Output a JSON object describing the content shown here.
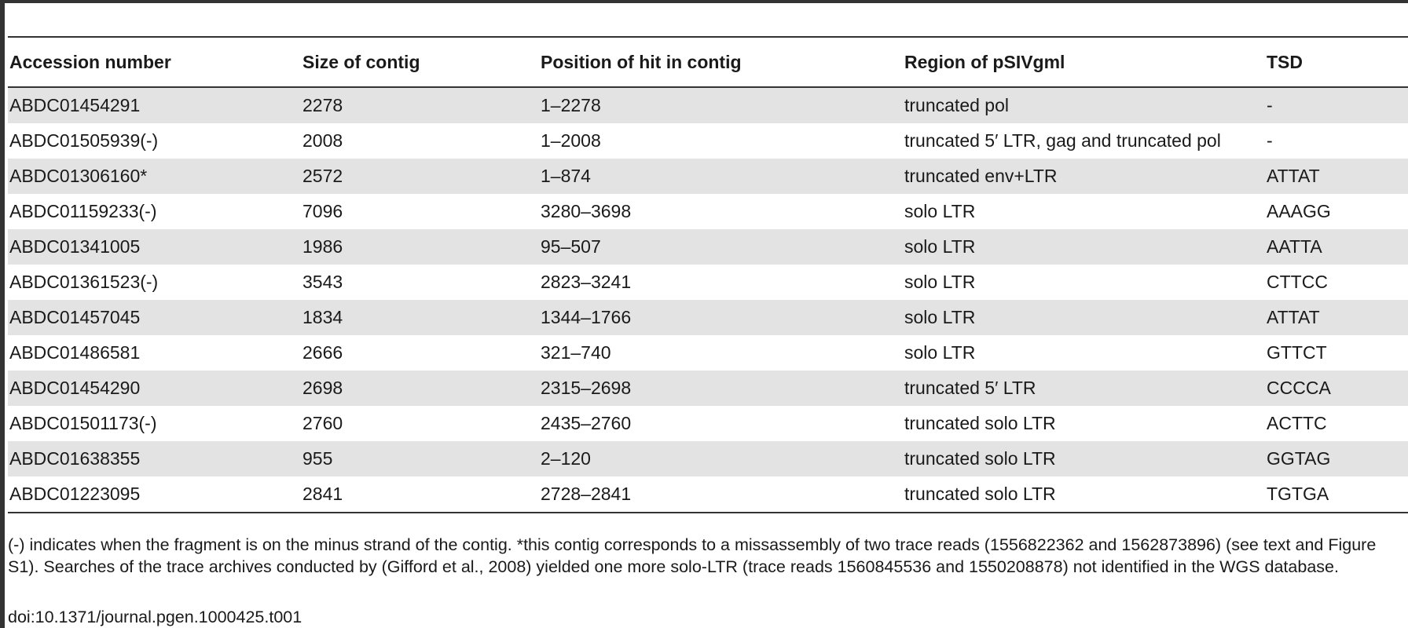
{
  "table": {
    "headers": [
      "Accession number",
      "Size of contig",
      "Position of hit in contig",
      "Region of pSIVgml",
      "TSD"
    ],
    "rows": [
      [
        "ABDC01454291",
        "2278",
        "1–2278",
        "truncated pol",
        "-"
      ],
      [
        "ABDC01505939(-)",
        "2008",
        "1–2008",
        "truncated 5′ LTR, gag and truncated pol",
        "-"
      ],
      [
        "ABDC01306160*",
        "2572",
        "1–874",
        "truncated env+LTR",
        "ATTAT"
      ],
      [
        "ABDC01159233(-)",
        "7096",
        "3280–3698",
        "solo LTR",
        "AAAGG"
      ],
      [
        "ABDC01341005",
        "1986",
        "95–507",
        "solo LTR",
        "AATTA"
      ],
      [
        "ABDC01361523(-)",
        "3543",
        "2823–3241",
        "solo LTR",
        "CTTCC"
      ],
      [
        "ABDC01457045",
        "1834",
        "1344–1766",
        "solo LTR",
        "ATTAT"
      ],
      [
        "ABDC01486581",
        "2666",
        "321–740",
        "solo LTR",
        "GTTCT"
      ],
      [
        "ABDC01454290",
        "2698",
        "2315–2698",
        "truncated 5′ LTR",
        "CCCCA"
      ],
      [
        "ABDC01501173(-)",
        "2760",
        "2435–2760",
        "truncated solo LTR",
        "ACTTC"
      ],
      [
        "ABDC01638355",
        "955",
        "2–120",
        "truncated solo LTR",
        "GGTAG"
      ],
      [
        "ABDC01223095",
        "2841",
        "2728–2841",
        "truncated solo LTR",
        "TGTGA"
      ]
    ]
  },
  "footnote": "(-) indicates when the fragment is on the minus strand of the contig. *this contig corresponds to a missassembly of two trace reads (1556822362 and 1562873896) (see text and Figure S1). Searches of the trace archives conducted by (Gifford et al., 2008) yielded one more solo-LTR (trace reads 1560845536 and 1550208878) not identified in the WGS database.",
  "doi": "doi:10.1371/journal.pgen.1000425.t001",
  "colors": {
    "row_shade": "#e3e3e3",
    "rule": "#333333"
  }
}
